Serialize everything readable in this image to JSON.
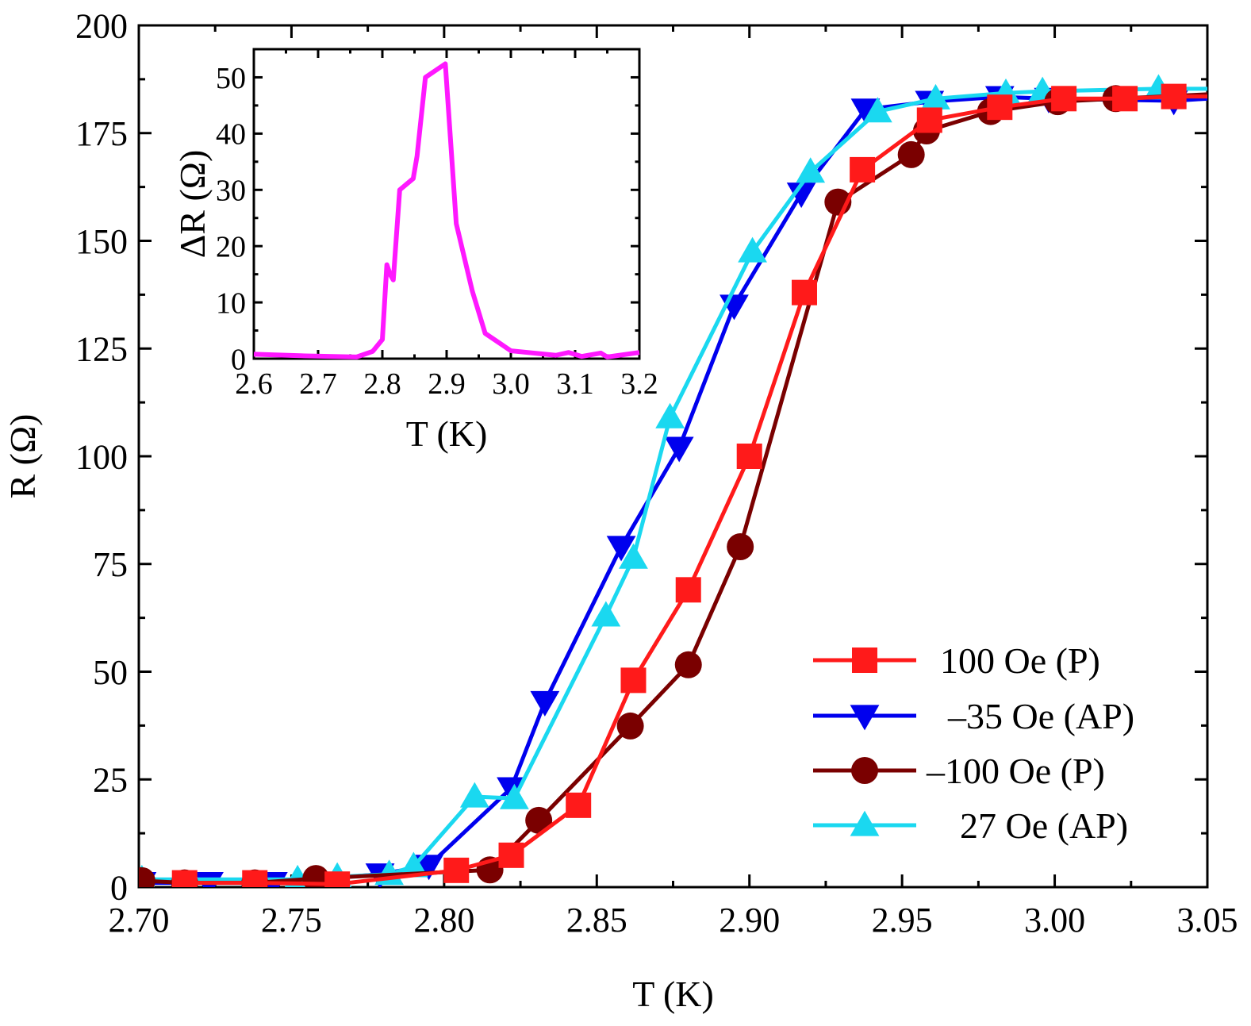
{
  "chart_data": [
    {
      "type": "line",
      "xlabel": "T (K)",
      "ylabel": "R (Ω)",
      "xlim": [
        2.7,
        3.05
      ],
      "ylim": [
        0,
        200
      ],
      "xticks": [
        "2.70",
        "2.75",
        "2.80",
        "2.85",
        "2.90",
        "2.95",
        "3.00",
        "3.05"
      ],
      "yticks": [
        "0",
        "25",
        "50",
        "75",
        "100",
        "125",
        "150",
        "175",
        "200"
      ],
      "grid": false,
      "legend_position": "bottom-right",
      "series": [
        {
          "name": "100 Oe  (P)",
          "color": "#ff1a1a",
          "marker": "square",
          "x": [
            2.715,
            2.738,
            2.765,
            2.804,
            2.822,
            2.844,
            2.862,
            2.88,
            2.9,
            2.918,
            2.937,
            2.959,
            2.982,
            3.003,
            3.023,
            3.039,
            3.05
          ],
          "y": [
            1,
            1,
            0.7,
            3.9,
            7.4,
            19,
            48,
            69,
            100,
            138,
            166.5,
            178,
            181,
            183,
            183,
            183.5,
            183.5
          ]
        },
        {
          "name": "–35 Oe (AP)",
          "color": "#0000ee",
          "marker": "triangle-down",
          "x": [
            2.701,
            2.723,
            2.744,
            2.779,
            2.795,
            2.822,
            2.833,
            2.858,
            2.877,
            2.895,
            2.917,
            2.938,
            2.959,
            2.982,
            2.998,
            3.039,
            3.05
          ],
          "y": [
            1,
            1,
            1,
            3,
            5,
            23,
            43,
            79,
            102,
            135,
            161,
            180.5,
            182.3,
            183.4,
            183,
            182.5,
            183
          ]
        },
        {
          "name": "–100 Oe  (P)",
          "color": "#7a0000",
          "marker": "circle",
          "x": [
            2.701,
            2.715,
            2.738,
            2.758,
            2.815,
            2.831,
            2.861,
            2.88,
            2.897,
            2.929,
            2.953,
            2.958,
            2.979,
            3.001,
            3.02,
            3.05
          ],
          "y": [
            1.5,
            1,
            1,
            2,
            4,
            15.5,
            37.4,
            51.6,
            79,
            159,
            170,
            175.5,
            180,
            182.3,
            183,
            184
          ]
        },
        {
          "name": "27 Oe (AP)",
          "color": "#1ad8f0",
          "marker": "triangle-up",
          "x": [
            2.701,
            2.752,
            2.765,
            2.782,
            2.79,
            2.81,
            2.823,
            2.853,
            2.862,
            2.874,
            2.901,
            2.92,
            2.942,
            2.961,
            2.984,
            2.996,
            3.034,
            3.05
          ],
          "y": [
            1.8,
            1.8,
            2.4,
            3,
            4.8,
            21,
            20.6,
            63,
            76.4,
            109,
            147.5,
            166,
            180,
            183,
            184.3,
            184.7,
            185.3,
            185.3
          ]
        }
      ]
    },
    {
      "type": "line",
      "xlabel": "T (K)",
      "ylabel": "ΔR (Ω)",
      "xlim": [
        2.6,
        3.2
      ],
      "ylim": [
        0,
        55
      ],
      "xticks": [
        "2.6",
        "2.7",
        "2.8",
        "2.9",
        "3.0",
        "3.1",
        "3.2"
      ],
      "yticks": [
        "0",
        "10",
        "20",
        "30",
        "40",
        "50"
      ],
      "grid": false,
      "series": [
        {
          "color": "#ff18ff",
          "x": [
            2.6,
            2.68,
            2.76,
            2.785,
            2.8,
            2.807,
            2.812,
            2.817,
            2.827,
            2.848,
            2.854,
            2.867,
            2.898,
            2.915,
            2.94,
            2.96,
            3.0,
            3.07,
            3.09,
            3.11,
            3.14,
            3.15,
            3.2
          ],
          "y": [
            0.8,
            0.5,
            0.3,
            1.3,
            3.4,
            16.7,
            15,
            14,
            30,
            32,
            36,
            50,
            52.4,
            24,
            12,
            4.5,
            1.4,
            0.6,
            1.1,
            0.4,
            1,
            0.3,
            1.1
          ]
        }
      ]
    }
  ]
}
